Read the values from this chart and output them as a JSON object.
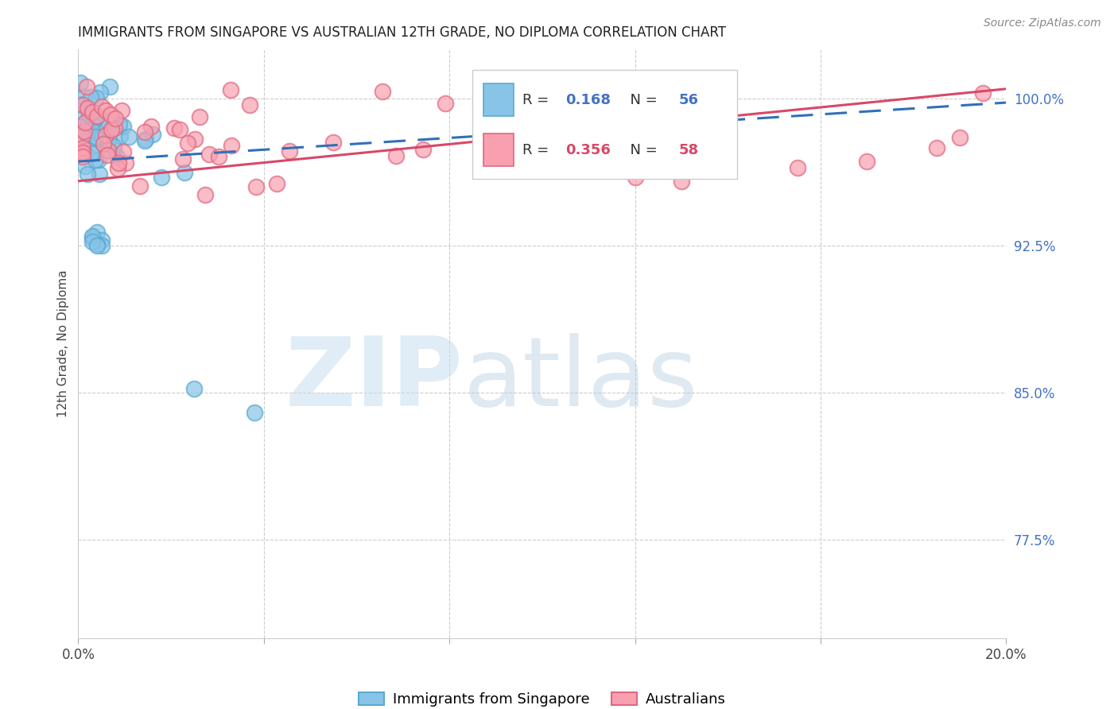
{
  "title": "IMMIGRANTS FROM SINGAPORE VS AUSTRALIAN 12TH GRADE, NO DIPLOMA CORRELATION CHART",
  "source": "Source: ZipAtlas.com",
  "ylabel": "12th Grade, No Diploma",
  "legend_blue_r": "0.168",
  "legend_blue_n": "56",
  "legend_pink_r": "0.356",
  "legend_pink_n": "58",
  "legend_blue_label": "Immigrants from Singapore",
  "legend_pink_label": "Australians",
  "blue_color": "#88c4e8",
  "blue_edge_color": "#5aaad0",
  "pink_color": "#f8a0b0",
  "pink_edge_color": "#e06880",
  "blue_line_color": "#3070b8",
  "pink_line_color": "#d84868",
  "xmin": 0.0,
  "xmax": 0.2,
  "ymin": 0.725,
  "ymax": 1.025,
  "ytick_vals": [
    0.775,
    0.85,
    0.925,
    1.0
  ],
  "ytick_labels": [
    "77.5%",
    "85.0%",
    "92.5%",
    "100.0%"
  ],
  "xtick_vals": [
    0.0,
    0.04,
    0.08,
    0.12,
    0.16,
    0.2
  ],
  "blue_trend_y0": 0.968,
  "blue_trend_y1": 0.998,
  "pink_trend_y0": 0.958,
  "pink_trend_y1": 1.005,
  "grid_color": "#cccccc",
  "watermark_zip_color": "#c8dff0",
  "watermark_atlas_color": "#b8cfe0",
  "title_fontsize": 12,
  "source_fontsize": 10,
  "tick_fontsize": 12,
  "legend_fontsize": 13
}
